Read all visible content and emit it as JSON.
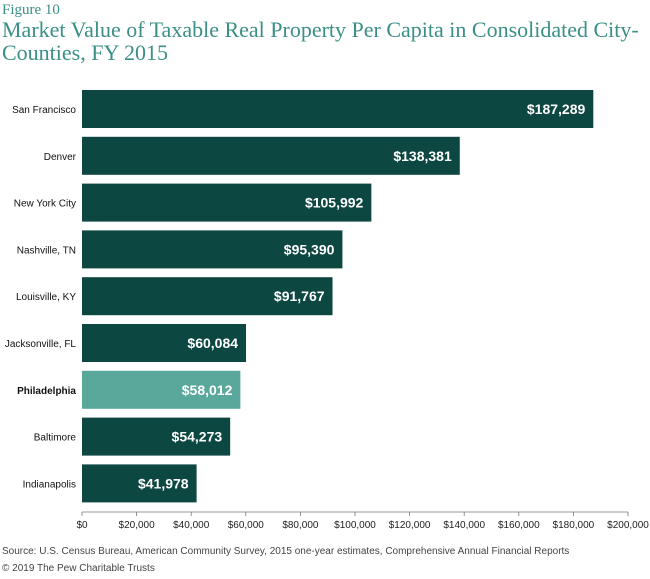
{
  "figure_label": "Figure 10",
  "source": "Source: U.S. Census Bureau, American Community Survey, 2015 one-year estimates, Comprehensive Annual Financial Reports",
  "copyright": "© 2019 The Pew Charitable Trusts",
  "colors": {
    "bar": "#0d4741",
    "highlight": "#5aa89c",
    "title": "#3a8f86"
  },
  "chart_data": {
    "type": "bar",
    "orientation": "horizontal",
    "title": "Market Value of Taxable Real Property Per Capita in Consolidated City-Counties, FY 2015",
    "categories": [
      "San Francisco",
      "Denver",
      "New York City",
      "Nashville, TN",
      "Louisville, KY",
      "Jacksonville, FL",
      "Philadelphia",
      "Baltimore",
      "Indianapolis"
    ],
    "values": [
      187289,
      138381,
      105992,
      95390,
      91767,
      60084,
      58012,
      54273,
      41978
    ],
    "value_labels": [
      "$187,289",
      "$138,381",
      "$105,992",
      "$95,390",
      "$91,767",
      "$60,084",
      "$58,012",
      "$54,273",
      "$41,978"
    ],
    "highlight": "Philadelphia",
    "xlim": [
      0,
      200000
    ],
    "xticks": [
      0,
      20000,
      40000,
      60000,
      80000,
      100000,
      120000,
      140000,
      160000,
      180000,
      200000
    ],
    "xtick_labels": [
      "$0",
      "$20,000",
      "$40,000",
      "$60,000",
      "$80,000",
      "$100,000",
      "$120,000",
      "$140,000",
      "$160,000",
      "$180,000",
      "$200,000"
    ],
    "grid": false
  }
}
